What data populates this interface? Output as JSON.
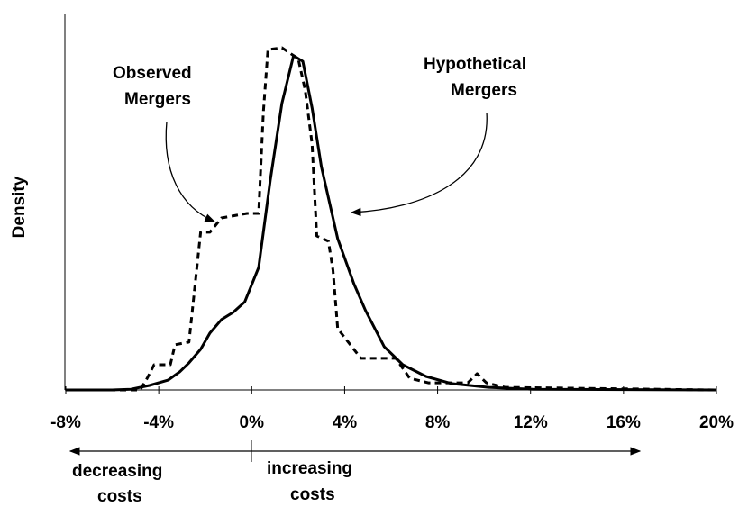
{
  "chart_data": {
    "type": "line",
    "ylabel": "Density",
    "xlim": [
      -8,
      20
    ],
    "ylim": [
      0,
      1
    ],
    "xticks": [
      {
        "value": -8,
        "label": "-8%"
      },
      {
        "value": -4,
        "label": "-4%"
      },
      {
        "value": 0,
        "label": "0%"
      },
      {
        "value": 4,
        "label": "4%"
      },
      {
        "value": 8,
        "label": "8%"
      },
      {
        "value": 12,
        "label": "12%"
      },
      {
        "value": 16,
        "label": "16%"
      },
      {
        "value": 20,
        "label": "20%"
      }
    ],
    "series": [
      {
        "name": "Hypothetical Mergers",
        "color": "#000000",
        "style": "solid",
        "x": [
          -8,
          -6,
          -5.2,
          -4.4,
          -3.6,
          -3.1,
          -2.7,
          -2.2,
          -1.8,
          -1.3,
          -0.8,
          -0.3,
          0.3,
          0.8,
          1.3,
          1.8,
          2.2,
          2.6,
          3.0,
          3.7,
          4.4,
          4.9,
          5.7,
          6.5,
          7.5,
          8.6,
          10.2,
          12.1,
          20
        ],
        "values": [
          0,
          0,
          0.002,
          0.012,
          0.026,
          0.048,
          0.072,
          0.108,
          0.151,
          0.187,
          0.206,
          0.234,
          0.325,
          0.557,
          0.761,
          0.888,
          0.873,
          0.749,
          0.593,
          0.402,
          0.282,
          0.211,
          0.115,
          0.067,
          0.036,
          0.017,
          0.007,
          0.002,
          0
        ]
      },
      {
        "name": "Observed Mergers",
        "color": "#000000",
        "style": "dashed",
        "x": [
          -8,
          -4.8,
          -4.5,
          -4.2,
          -3.5,
          -3.3,
          -2.7,
          -2.2,
          -1.8,
          -1.3,
          -0.2,
          0.3,
          0.5,
          0.7,
          1.3,
          2.0,
          2.3,
          2.6,
          2.8,
          3.3,
          3.5,
          3.7,
          4.7,
          6.2,
          6.8,
          7.6,
          9.3,
          9.7,
          10.1,
          10.9,
          20
        ],
        "values": [
          0,
          0,
          0.031,
          0.067,
          0.067,
          0.12,
          0.127,
          0.419,
          0.419,
          0.457,
          0.469,
          0.469,
          0.737,
          0.904,
          0.909,
          0.88,
          0.797,
          0.653,
          0.409,
          0.395,
          0.318,
          0.163,
          0.084,
          0.084,
          0.031,
          0.019,
          0.019,
          0.043,
          0.019,
          0.007,
          0
        ]
      }
    ],
    "annotations": [
      {
        "lines": [
          "Observed",
          "Mergers"
        ]
      },
      {
        "lines": [
          "Hypothetical",
          "Mergers"
        ]
      },
      {
        "lines": [
          "decreasing",
          "costs"
        ]
      },
      {
        "lines": [
          "increasing",
          "costs"
        ]
      }
    ]
  }
}
